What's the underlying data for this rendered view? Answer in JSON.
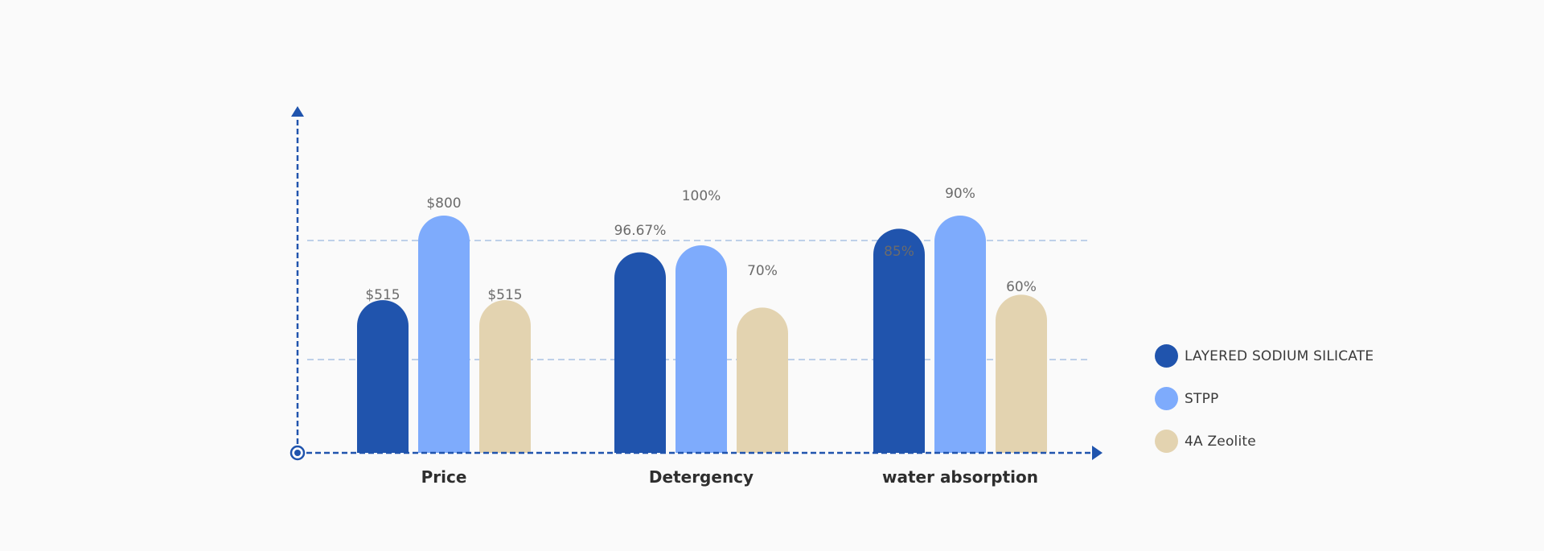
{
  "chart_data": {
    "type": "bar",
    "categories": [
      "Price",
      "Detergency",
      "water absorption"
    ],
    "series": [
      {
        "name": "LAYERED SODIUM SILICATE",
        "color": "#2054ad",
        "values": [
          515,
          96.67,
          85
        ],
        "labels": [
          "$515",
          "96.67%",
          "85%"
        ]
      },
      {
        "name": "STPP",
        "color": "#7eabfc",
        "values": [
          800,
          100,
          90
        ],
        "labels": [
          "$800",
          "100%",
          "90%"
        ]
      },
      {
        "name": "4A Zeolite",
        "color": "#e3d3b0",
        "values": [
          515,
          70,
          60
        ],
        "labels": [
          "$515",
          "70%",
          "60%"
        ]
      }
    ],
    "grid": "horizontal dashed",
    "legend": "right"
  },
  "colors": {
    "axis": "#2054ad",
    "grid": "#a9c1e3"
  }
}
